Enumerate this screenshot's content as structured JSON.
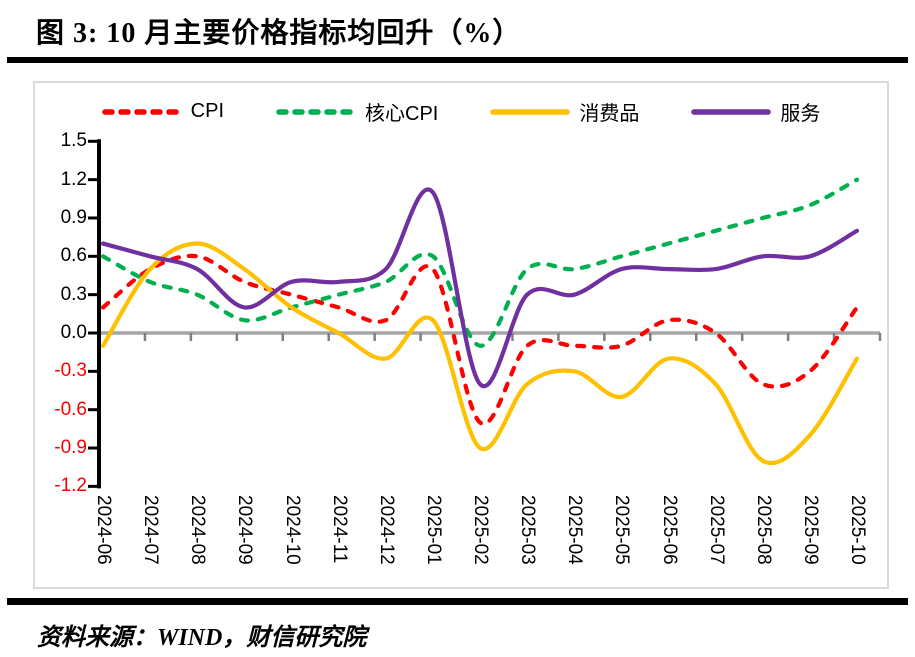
{
  "title": "图 3:  10 月主要价格指标均回升（%）",
  "source": "资料来源：WIND，财信研究院",
  "colors": {
    "axis": "#000000",
    "zero_line": "#a6a6a6",
    "category_tick": "#7f7f7f",
    "negative_tick_label": "#ff0000",
    "chart_border": "#d9d9d9",
    "cpi": "#ff0000",
    "core_cpi": "#00b050",
    "consumer_goods": "#ffc000",
    "services": "#7030a0"
  },
  "chart_data": {
    "type": "line",
    "title": "图 3:  10 月主要价格指标均回升（%）",
    "unit": "%",
    "categories": [
      "2024-06",
      "2024-07",
      "2024-08",
      "2024-09",
      "2024-10",
      "2024-11",
      "2024-12",
      "2025-01",
      "2025-02",
      "2025-03",
      "2025-04",
      "2025-05",
      "2025-06",
      "2025-07",
      "2025-08",
      "2025-09",
      "2025-10"
    ],
    "series": [
      {
        "key": "cpi",
        "name": "CPI",
        "color": "#ff0000",
        "dashed": true,
        "values": [
          0.2,
          0.5,
          0.6,
          0.4,
          0.3,
          0.2,
          0.1,
          0.5,
          -0.7,
          -0.1,
          -0.1,
          -0.1,
          0.1,
          0.0,
          -0.4,
          -0.3,
          0.2
        ]
      },
      {
        "key": "core-cpi",
        "name": "核心CPI",
        "color": "#00b050",
        "dashed": true,
        "values": [
          0.6,
          0.4,
          0.3,
          0.1,
          0.2,
          0.3,
          0.4,
          0.6,
          -0.1,
          0.5,
          0.5,
          0.6,
          0.7,
          0.8,
          0.9,
          1.0,
          1.2
        ]
      },
      {
        "key": "consumer-goods",
        "name": "消费品",
        "color": "#ffc000",
        "dashed": false,
        "values": [
          -0.1,
          0.5,
          0.7,
          0.5,
          0.2,
          0.0,
          -0.2,
          0.1,
          -0.9,
          -0.4,
          -0.3,
          -0.5,
          -0.2,
          -0.4,
          -1.0,
          -0.8,
          -0.2
        ]
      },
      {
        "key": "services",
        "name": "服务",
        "color": "#7030a0",
        "dashed": false,
        "values": [
          0.7,
          0.6,
          0.5,
          0.2,
          0.4,
          0.4,
          0.5,
          1.1,
          -0.4,
          0.3,
          0.3,
          0.5,
          0.5,
          0.5,
          0.6,
          0.6,
          0.8
        ]
      }
    ],
    "ylim": [
      -1.2,
      1.5
    ],
    "yticks": [
      1.5,
      1.2,
      0.9,
      0.6,
      0.3,
      0.0,
      -0.3,
      -0.6,
      -0.9,
      -1.2
    ],
    "grid": "zero-line-only",
    "legend_position": "top",
    "xlabel": "",
    "ylabel": ""
  }
}
